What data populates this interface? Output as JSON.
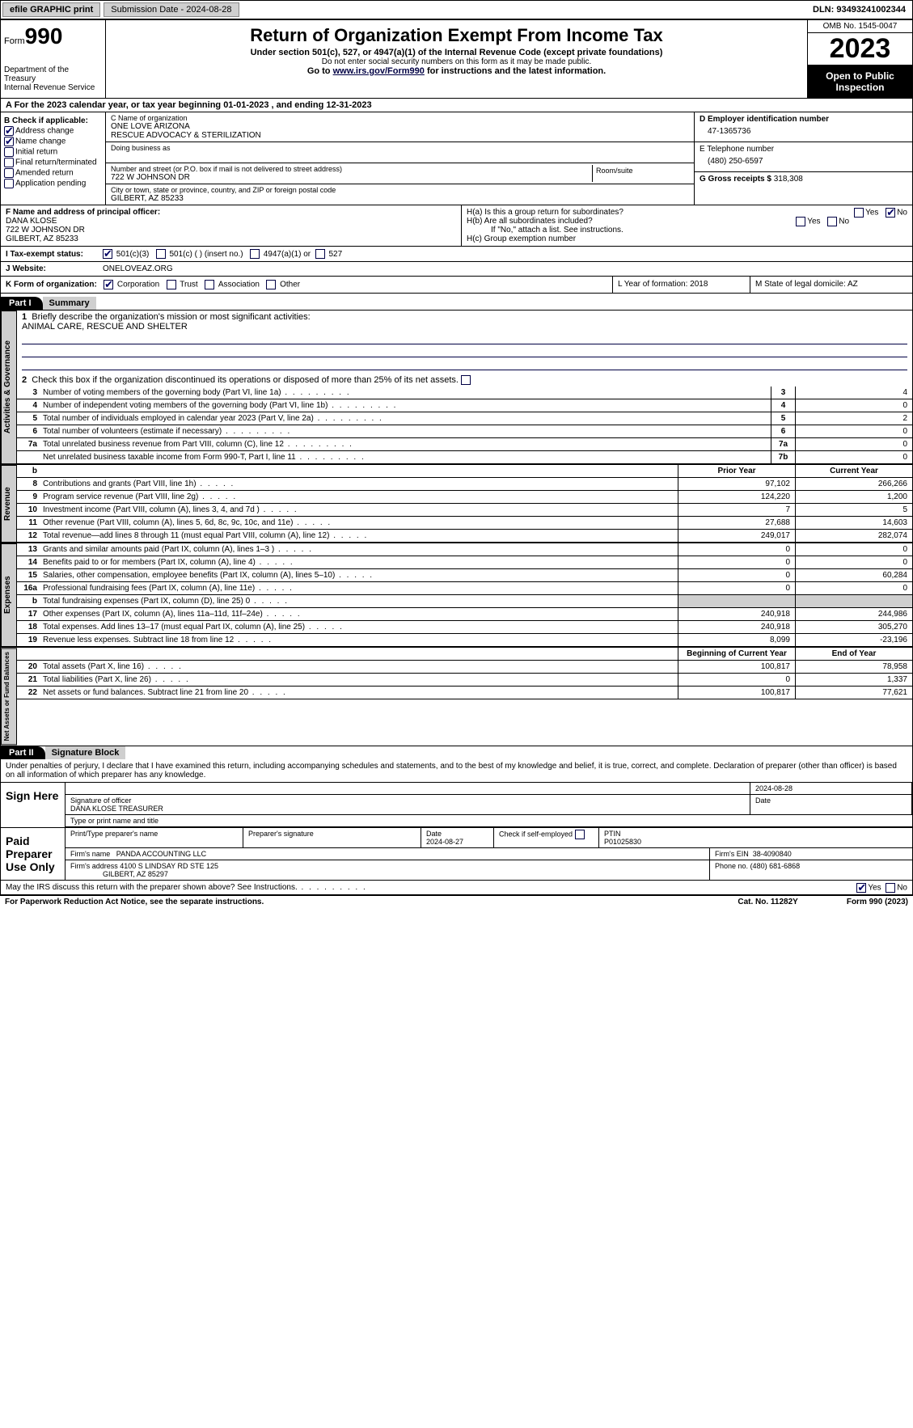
{
  "topbar": {
    "efile": "efile GRAPHIC print",
    "sub_label": "Submission Date - 2024-08-28",
    "dln": "DLN: 93493241002344"
  },
  "header": {
    "form_word": "Form",
    "form_num": "990",
    "dept": "Department of the Treasury\nInternal Revenue Service",
    "title": "Return of Organization Exempt From Income Tax",
    "sub1": "Under section 501(c), 527, or 4947(a)(1) of the Internal Revenue Code (except private foundations)",
    "sub2": "Do not enter social security numbers on this form as it may be made public.",
    "goto_pre": "Go to ",
    "goto_link": "www.irs.gov/Form990",
    "goto_post": " for instructions and the latest information.",
    "omb": "OMB No. 1545-0047",
    "year": "2023",
    "open": "Open to Public Inspection"
  },
  "row_a": "A For the 2023 calendar year, or tax year beginning 01-01-2023    , and ending 12-31-2023",
  "box_b": {
    "title": "B Check if applicable:",
    "addr": "Address change",
    "name": "Name change",
    "init": "Initial return",
    "final": "Final return/terminated",
    "amend": "Amended return",
    "app": "Application pending"
  },
  "box_c": {
    "lbl": "C Name of organization",
    "name1": "ONE LOVE ARIZONA",
    "name2": "RESCUE ADVOCACY & STERILIZATION",
    "dba_lbl": "Doing business as",
    "addr_lbl": "Number and street (or P.O. box if mail is not delivered to street address)",
    "addr": "722 W JOHNSON DR",
    "room_lbl": "Room/suite",
    "city_lbl": "City or town, state or province, country, and ZIP or foreign postal code",
    "city": "GILBERT, AZ  85233"
  },
  "box_d": {
    "lbl": "D Employer identification number",
    "val": "47-1365736"
  },
  "box_e": {
    "lbl": "E Telephone number",
    "val": "(480) 250-6597"
  },
  "box_g": {
    "lbl": "G Gross receipts $ ",
    "val": "318,308"
  },
  "box_f": {
    "lbl": "F  Name and address of principal officer:",
    "name": "DANA KLOSE",
    "addr1": "722 W JOHNSON DR",
    "addr2": "GILBERT, AZ  85233"
  },
  "box_h": {
    "a_lbl": "H(a)  Is this a group return for subordinates?",
    "b_lbl": "H(b)  Are all subordinates included?",
    "note": "If \"No,\" attach a list. See instructions.",
    "c_lbl": "H(c)  Group exemption number",
    "yes": "Yes",
    "no": "No"
  },
  "box_i": {
    "lbl": "I   Tax-exempt status:",
    "o1": "501(c)(3)",
    "o2": "501(c) (  ) (insert no.)",
    "o3": "4947(a)(1) or",
    "o4": "527"
  },
  "box_j": {
    "lbl": "J   Website:",
    "val": "ONELOVEAZ.ORG"
  },
  "box_k": {
    "lbl": "K Form of organization:",
    "corp": "Corporation",
    "trust": "Trust",
    "assoc": "Association",
    "other": "Other"
  },
  "box_l": "L Year of formation: 2018",
  "box_m": "M State of legal domicile: AZ",
  "part1": {
    "hdr": "Part I",
    "title": "Summary",
    "l1_lbl": "Briefly describe the organization's mission or most significant activities:",
    "l1_val": "ANIMAL CARE, RESCUE AND SHELTER",
    "l2": "Check this box        if the organization discontinued its operations or disposed of more than 25% of its net assets.",
    "side_ag": "Activities & Governance",
    "side_rev": "Revenue",
    "side_exp": "Expenses",
    "side_na": "Net Assets or Fund Balances",
    "col_prior": "Prior Year",
    "col_curr": "Current Year",
    "col_begin": "Beginning of Current Year",
    "col_end": "End of Year",
    "lines_top": [
      {
        "n": "3",
        "t": "Number of voting members of the governing body (Part VI, line 1a)",
        "box": "3",
        "v": "4"
      },
      {
        "n": "4",
        "t": "Number of independent voting members of the governing body (Part VI, line 1b)",
        "box": "4",
        "v": "0"
      },
      {
        "n": "5",
        "t": "Total number of individuals employed in calendar year 2023 (Part V, line 2a)",
        "box": "5",
        "v": "2"
      },
      {
        "n": "6",
        "t": "Total number of volunteers (estimate if necessary)",
        "box": "6",
        "v": "0"
      },
      {
        "n": "7a",
        "t": "Total unrelated business revenue from Part VIII, column (C), line 12",
        "box": "7a",
        "v": "0"
      },
      {
        "n": "",
        "t": "Net unrelated business taxable income from Form 990-T, Part I, line 11",
        "box": "7b",
        "v": "0"
      }
    ],
    "lines_rev": [
      {
        "n": "8",
        "t": "Contributions and grants (Part VIII, line 1h)",
        "p": "97,102",
        "c": "266,266"
      },
      {
        "n": "9",
        "t": "Program service revenue (Part VIII, line 2g)",
        "p": "124,220",
        "c": "1,200"
      },
      {
        "n": "10",
        "t": "Investment income (Part VIII, column (A), lines 3, 4, and 7d )",
        "p": "7",
        "c": "5"
      },
      {
        "n": "11",
        "t": "Other revenue (Part VIII, column (A), lines 5, 6d, 8c, 9c, 10c, and 11e)",
        "p": "27,688",
        "c": "14,603"
      },
      {
        "n": "12",
        "t": "Total revenue—add lines 8 through 11 (must equal Part VIII, column (A), line 12)",
        "p": "249,017",
        "c": "282,074"
      }
    ],
    "lines_exp": [
      {
        "n": "13",
        "t": "Grants and similar amounts paid (Part IX, column (A), lines 1–3 )",
        "p": "0",
        "c": "0"
      },
      {
        "n": "14",
        "t": "Benefits paid to or for members (Part IX, column (A), line 4)",
        "p": "0",
        "c": "0"
      },
      {
        "n": "15",
        "t": "Salaries, other compensation, employee benefits (Part IX, column (A), lines 5–10)",
        "p": "0",
        "c": "60,284"
      },
      {
        "n": "16a",
        "t": "Professional fundraising fees (Part IX, column (A), line 11e)",
        "p": "0",
        "c": "0"
      },
      {
        "n": "b",
        "t": "Total fundraising expenses (Part IX, column (D), line 25) 0",
        "p": "",
        "c": "",
        "shaded": true
      },
      {
        "n": "17",
        "t": "Other expenses (Part IX, column (A), lines 11a–11d, 11f–24e)",
        "p": "240,918",
        "c": "244,986"
      },
      {
        "n": "18",
        "t": "Total expenses. Add lines 13–17 (must equal Part IX, column (A), line 25)",
        "p": "240,918",
        "c": "305,270"
      },
      {
        "n": "19",
        "t": "Revenue less expenses. Subtract line 18 from line 12",
        "p": "8,099",
        "c": "-23,196"
      }
    ],
    "lines_na": [
      {
        "n": "20",
        "t": "Total assets (Part X, line 16)",
        "p": "100,817",
        "c": "78,958"
      },
      {
        "n": "21",
        "t": "Total liabilities (Part X, line 26)",
        "p": "0",
        "c": "1,337"
      },
      {
        "n": "22",
        "t": "Net assets or fund balances. Subtract line 21 from line 20",
        "p": "100,817",
        "c": "77,621"
      }
    ]
  },
  "part2": {
    "hdr": "Part II",
    "title": "Signature Block",
    "decl": "Under penalties of perjury, I declare that I have examined this return, including accompanying schedules and statements, and to the best of my knowledge and belief, it is true, correct, and complete. Declaration of preparer (other than officer) is based on all information of which preparer has any knowledge.",
    "sign_here": "Sign Here",
    "sig_lbl": "Signature of officer",
    "sig_name": "DANA KLOSE  TREASURER",
    "sig_type": "Type or print name and title",
    "date_lbl": "Date",
    "date": "2024-08-28",
    "paid": "Paid Preparer Use Only",
    "prep_name_lbl": "Print/Type preparer's name",
    "prep_sig_lbl": "Preparer's signature",
    "prep_date_lbl": "Date",
    "prep_date": "2024-08-27",
    "self_lbl": "Check         if self-employed",
    "ptin_lbl": "PTIN",
    "ptin": "P01025830",
    "firm_name_lbl": "Firm's name",
    "firm_name": "PANDA ACCOUNTING LLC",
    "firm_ein_lbl": "Firm's EIN",
    "firm_ein": "38-4090840",
    "firm_addr_lbl": "Firm's address",
    "firm_addr1": "4100 S LINDSAY RD STE 125",
    "firm_addr2": "GILBERT, AZ  85297",
    "phone_lbl": "Phone no.",
    "phone": "(480) 681-6868",
    "discuss": "May the IRS discuss this return with the preparer shown above? See Instructions.",
    "yes": "Yes",
    "no": "No"
  },
  "footer": {
    "pra": "For Paperwork Reduction Act Notice, see the separate instructions.",
    "cat": "Cat. No. 11282Y",
    "form": "Form 990 (2023)"
  }
}
